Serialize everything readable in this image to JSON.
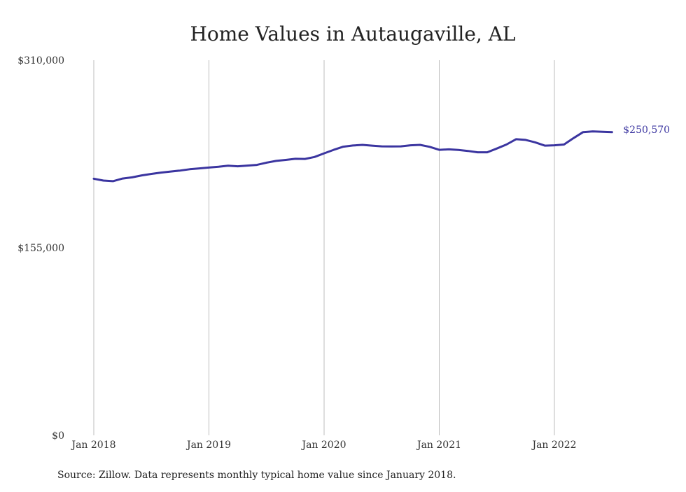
{
  "chart_data": {
    "type": "line",
    "title": "Home Values in Autaugaville, AL",
    "xlabel": "",
    "ylabel": "",
    "ylim": [
      0,
      310000
    ],
    "y_ticks": [
      "$310,000",
      "$155,000",
      "$0"
    ],
    "y_tick_values": [
      310000,
      155000,
      0
    ],
    "x_ticks": [
      "Jan 2018",
      "Jan 2019",
      "Jan 2020",
      "Jan 2021",
      "Jan 2022"
    ],
    "x_tick_dates": [
      "2018-01",
      "2019-01",
      "2020-01",
      "2021-01",
      "2022-01"
    ],
    "grid": "vertical",
    "line_color": "#3b35a0",
    "end_label": "$250,570",
    "series": [
      {
        "x": [
          "2018-01",
          "2018-02",
          "2018-03",
          "2018-04",
          "2018-05",
          "2018-06",
          "2018-07",
          "2018-08",
          "2018-09",
          "2018-10",
          "2018-11",
          "2018-12",
          "2019-01",
          "2019-02",
          "2019-03",
          "2019-04",
          "2019-05",
          "2019-06",
          "2019-07",
          "2019-08",
          "2019-09",
          "2019-10",
          "2019-11",
          "2019-12",
          "2020-01",
          "2020-02",
          "2020-03",
          "2020-04",
          "2020-05",
          "2020-06",
          "2020-07",
          "2020-08",
          "2020-09",
          "2020-10",
          "2020-11",
          "2020-12",
          "2021-01",
          "2021-02",
          "2021-03",
          "2021-04",
          "2021-05",
          "2021-06",
          "2021-07",
          "2021-08",
          "2021-09",
          "2021-10",
          "2021-11",
          "2021-12",
          "2022-01",
          "2022-02",
          "2022-03",
          "2022-04",
          "2022-05",
          "2022-06",
          "2022-07"
        ],
        "values": [
          212000,
          210500,
          210000,
          212200,
          213200,
          214800,
          216000,
          217100,
          218000,
          218800,
          219900,
          220600,
          221300,
          221900,
          222800,
          222300,
          222900,
          223500,
          225300,
          226800,
          227600,
          228500,
          228400,
          230000,
          233000,
          235900,
          238500,
          239500,
          240000,
          239400,
          238800,
          238700,
          238800,
          239700,
          240000,
          238400,
          235900,
          236300,
          235800,
          235000,
          233900,
          233900,
          237000,
          240300,
          244700,
          244100,
          242100,
          239400,
          239700,
          240300,
          245600,
          250600,
          251100,
          250900,
          250570
        ]
      }
    ]
  },
  "source_note": "Source: Zillow. Data represents monthly typical home value since January 2018."
}
